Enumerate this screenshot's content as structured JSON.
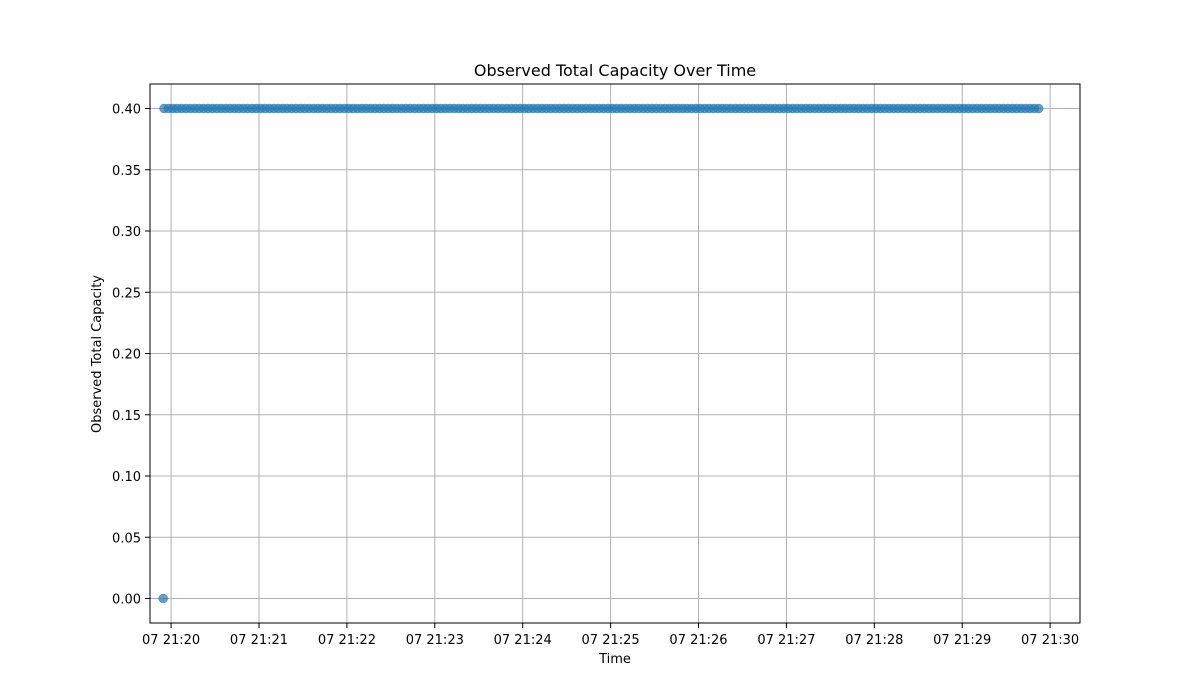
{
  "chart_data": {
    "type": "scatter",
    "title": "Observed Total Capacity Over Time",
    "xlabel": "Time",
    "ylabel": "Observed Total Capacity",
    "grid": true,
    "marker_color": "#1f77b4",
    "x_unit": "minutes",
    "xlim": [
      19.76,
      30.34
    ],
    "ylim": [
      -0.02,
      0.42
    ],
    "x_ticks": [
      {
        "value": 20,
        "label": "07 21:20"
      },
      {
        "value": 21,
        "label": "07 21:21"
      },
      {
        "value": 22,
        "label": "07 21:22"
      },
      {
        "value": 23,
        "label": "07 21:23"
      },
      {
        "value": 24,
        "label": "07 21:24"
      },
      {
        "value": 25,
        "label": "07 21:25"
      },
      {
        "value": 26,
        "label": "07 21:26"
      },
      {
        "value": 27,
        "label": "07 21:27"
      },
      {
        "value": 28,
        "label": "07 21:28"
      },
      {
        "value": 29,
        "label": "07 21:29"
      },
      {
        "value": 30,
        "label": "07 21:30"
      }
    ],
    "y_ticks": [
      {
        "value": 0.0,
        "label": "0.00"
      },
      {
        "value": 0.05,
        "label": "0.05"
      },
      {
        "value": 0.1,
        "label": "0.10"
      },
      {
        "value": 0.15,
        "label": "0.15"
      },
      {
        "value": 0.2,
        "label": "0.20"
      },
      {
        "value": 0.25,
        "label": "0.25"
      },
      {
        "value": 0.3,
        "label": "0.30"
      },
      {
        "value": 0.35,
        "label": "0.35"
      },
      {
        "value": 0.4,
        "label": "0.40"
      }
    ],
    "series": [
      {
        "name": "Observed Total Capacity",
        "segments": [
          {
            "x_start": 19.91,
            "x_end": 19.91,
            "y": 0.0,
            "step": 1
          },
          {
            "x_start": 19.92,
            "x_end": 29.85,
            "y": 0.4,
            "step": 0.05
          }
        ]
      }
    ]
  }
}
